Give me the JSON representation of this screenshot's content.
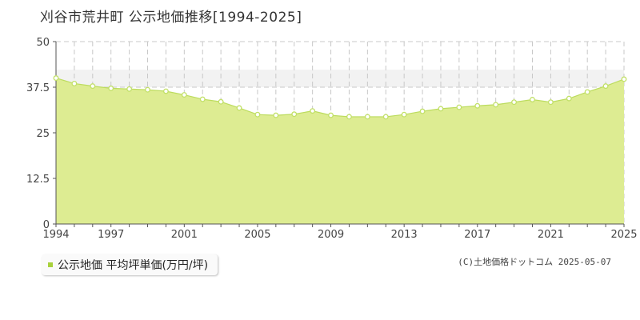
{
  "title": "刈谷市荒井町 公示地価推移[1994-2025]",
  "legend": {
    "label": "公示地価 平均坪単価(万円/坪)",
    "color": "#a8d13c"
  },
  "credit": "(C)土地価格ドットコム 2025-05-07",
  "colors": {
    "fill": "#ddec92",
    "line": "#bcdc5e",
    "marker": "#c2e068",
    "grid": "#c8c8c8",
    "band": "#f2f2f2"
  },
  "chart_data": {
    "type": "area",
    "ylim": [
      0,
      50
    ],
    "yticks": [
      "0",
      "12.5",
      "25",
      "37.5",
      "50"
    ],
    "xtick_labels": [
      "1994",
      "1997",
      "2001",
      "2005",
      "2009",
      "2013",
      "2017",
      "2021",
      "2025"
    ],
    "series": [
      {
        "name": "公示地価 平均坪単価(万円/坪)",
        "x": [
          1994,
          1995,
          1996,
          1997,
          1998,
          1999,
          2000,
          2001,
          2002,
          2003,
          2004,
          2005,
          2006,
          2007,
          2008,
          2009,
          2010,
          2011,
          2012,
          2013,
          2014,
          2015,
          2016,
          2017,
          2018,
          2019,
          2020,
          2021,
          2022,
          2023,
          2024,
          2025
        ],
        "values": [
          40.0,
          38.5,
          37.8,
          37.2,
          37.0,
          36.8,
          36.4,
          35.4,
          34.2,
          33.5,
          31.8,
          30.0,
          29.8,
          30.1,
          31.0,
          29.8,
          29.4,
          29.4,
          29.4,
          30.0,
          30.9,
          31.6,
          32.0,
          32.4,
          32.7,
          33.4,
          34.1,
          33.4,
          34.4,
          36.2,
          37.8,
          39.7
        ]
      }
    ]
  }
}
